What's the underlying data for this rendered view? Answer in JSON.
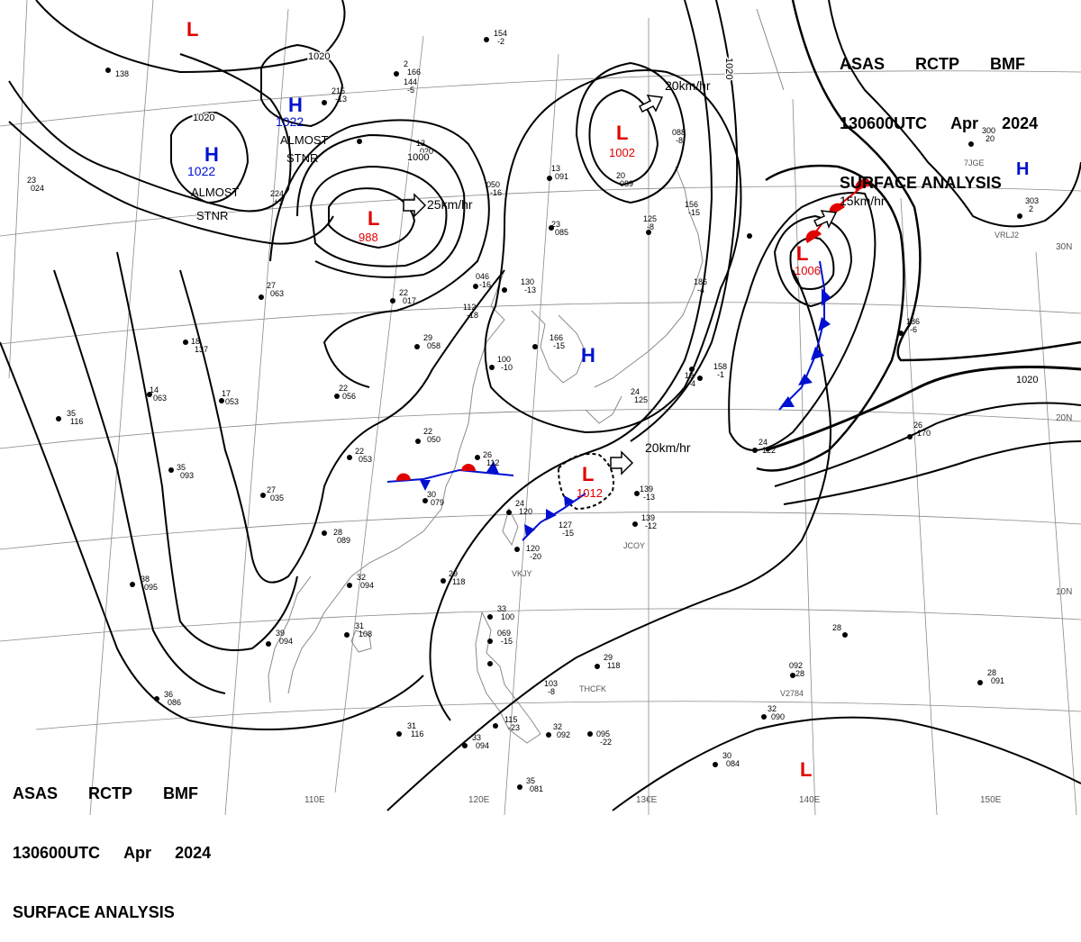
{
  "header": {
    "line1": [
      "ASAS",
      "RCTP",
      "BMF"
    ],
    "line2": [
      "130600UTC",
      "Apr",
      "2024"
    ],
    "line3": "SURFACE ANALYSIS"
  },
  "lon_labels": [
    "110E",
    "120E",
    "13€E",
    "140E",
    "150E"
  ],
  "lat_labels": [
    "30N",
    "20N",
    "10N"
  ],
  "colors": {
    "low": "#e00000",
    "high": "#0010d0",
    "warm_front": "#e00000",
    "cold_front": "#0010d0",
    "isobar": "#000000"
  },
  "lows": [
    {
      "symbol": "L",
      "pressure": ""
    },
    {
      "symbol": "L",
      "pressure": "988"
    },
    {
      "symbol": "L",
      "pressure": "1002"
    },
    {
      "symbol": "L",
      "pressure": "1006"
    },
    {
      "symbol": "L",
      "pressure": "1012"
    },
    {
      "symbol": "L",
      "pressure": ""
    }
  ],
  "highs": [
    {
      "symbol": "H",
      "pressure": "1022"
    },
    {
      "symbol": "H",
      "pressure": "1022"
    },
    {
      "symbol": "H",
      "pressure": ""
    },
    {
      "symbol": "H",
      "pressure": ""
    }
  ],
  "isobar_labels": [
    "1020",
    "1020",
    "1000",
    "1020",
    "1020"
  ],
  "motion_labels": [
    "25km/hr",
    "20km/hr",
    "15km/hr",
    "20km/hr"
  ],
  "notes": [
    "ALMOST",
    "STNR",
    "ALMOST",
    "STNR"
  ],
  "stations": [
    {
      "t": "138",
      "p": ""
    },
    {
      "t": "2",
      "p": "166"
    },
    {
      "t": "154",
      "p": "-2"
    },
    {
      "t": "215",
      "p": "-13"
    },
    {
      "t": "144",
      "p": "-5"
    },
    {
      "t": "23",
      "p": "024"
    },
    {
      "t": "224",
      "p": "+1"
    },
    {
      "t": "13",
      "p": "020"
    },
    {
      "t": "050",
      "p": "-16"
    },
    {
      "t": "13",
      "p": "091"
    },
    {
      "t": "20",
      "p": "089"
    },
    {
      "t": "088",
      "p": "-8"
    },
    {
      "t": "125",
      "p": "-8"
    },
    {
      "t": "23",
      "p": "085"
    },
    {
      "t": "156",
      "p": "-15"
    },
    {
      "t": "22",
      "p": "017"
    },
    {
      "t": "27",
      "p": "063"
    },
    {
      "t": "046",
      "p": "-16"
    },
    {
      "t": "130",
      "p": "-13"
    },
    {
      "t": "112",
      "p": "-18"
    },
    {
      "t": "186",
      "p": "-4"
    },
    {
      "t": "18",
      "p": "137"
    },
    {
      "t": "29",
      "p": "058"
    },
    {
      "t": "166",
      "p": "-15"
    },
    {
      "t": "22",
      "p": "056"
    },
    {
      "t": "100",
      "p": "-10"
    },
    {
      "t": "14",
      "p": "063"
    },
    {
      "t": "35",
      "p": "116"
    },
    {
      "t": "17",
      "p": "053"
    },
    {
      "t": "24",
      "p": "125"
    },
    {
      "t": "22",
      "p": "050"
    },
    {
      "t": "22",
      "p": "053"
    },
    {
      "t": "26",
      "p": "112"
    },
    {
      "t": "27",
      "p": "035"
    },
    {
      "t": "35",
      "p": "093"
    },
    {
      "t": "30",
      "p": "079"
    },
    {
      "t": "24",
      "p": "120"
    },
    {
      "t": "127",
      "p": "-15"
    },
    {
      "t": "139",
      "p": "-13"
    },
    {
      "t": "139",
      "p": "-12"
    },
    {
      "t": "28",
      "p": "089"
    },
    {
      "t": "29",
      "p": "118"
    },
    {
      "t": "32",
      "p": "094"
    },
    {
      "t": "120",
      "p": "-20"
    },
    {
      "t": "38",
      "p": "095"
    },
    {
      "t": "31",
      "p": "108"
    },
    {
      "t": "39",
      "p": "094"
    },
    {
      "t": "33",
      "p": "100"
    },
    {
      "t": "069",
      "p": "-15"
    },
    {
      "t": "29",
      "p": "118"
    },
    {
      "t": "103",
      "p": "-8"
    },
    {
      "t": "092",
      "p": "-28"
    },
    {
      "t": "28",
      "p": "091"
    },
    {
      "t": "36",
      "p": "086"
    },
    {
      "t": "31",
      "p": "116"
    },
    {
      "t": "33",
      "p": "094"
    },
    {
      "t": "115",
      "p": "-23"
    },
    {
      "t": "32",
      "p": "092"
    },
    {
      "t": "095",
      "p": "-22"
    },
    {
      "t": "32",
      "p": "090"
    },
    {
      "t": "30",
      "p": "084"
    },
    {
      "t": "35",
      "p": "081"
    },
    {
      "t": "28",
      "p": ""
    },
    {
      "t": "26",
      "p": "170"
    },
    {
      "t": "24",
      "p": "122"
    },
    {
      "t": "186",
      "p": "-6"
    },
    {
      "t": "303",
      "p": "2"
    },
    {
      "t": "300",
      "p": "20"
    },
    {
      "t": "158",
      "p": "-1"
    },
    {
      "t": "19",
      "p": "-4"
    }
  ],
  "station_ids": [
    "JCOY",
    "VKJY",
    "THCFK",
    "V2784",
    "VRLJ2",
    "7JGE"
  ]
}
